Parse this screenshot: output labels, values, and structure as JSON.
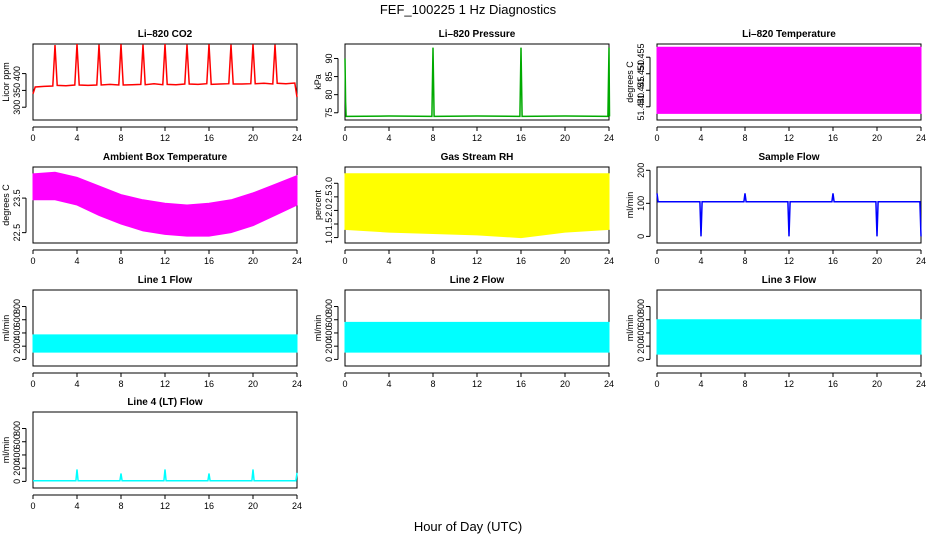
{
  "figure": {
    "title": "FEF_100225  1 Hz Diagnostics",
    "xlabel": "Hour of Day (UTC)"
  },
  "chart_data": [
    {
      "type": "line",
      "title": "Li–820 CO2",
      "ylabel": "Licor ppm",
      "color": "#ff0000",
      "xlim": [
        0,
        24
      ],
      "ylim": [
        262,
        488
      ],
      "xticks": [
        "0",
        "4",
        "8",
        "12",
        "16",
        "20",
        "24"
      ],
      "yticks": [
        "300",
        "350",
        "400"
      ],
      "ytick_values": [
        300,
        350,
        400
      ],
      "series": [
        {
          "x": [
            0,
            0.2,
            1,
            1.8,
            2,
            2.2,
            3,
            3.8,
            4,
            4.2,
            5,
            5.8,
            6,
            6.2,
            7,
            7.8,
            8,
            8.2,
            9,
            9.8,
            10,
            10.2,
            11,
            11.8,
            12,
            12.2,
            13,
            13.8,
            14,
            14.2,
            15,
            15.8,
            16,
            16.2,
            17,
            17.8,
            18,
            18.2,
            19,
            19.8,
            20,
            20.2,
            21,
            21.8,
            22,
            22.2,
            23,
            23.8,
            24
          ],
          "y": [
            340,
            360,
            362,
            363,
            485,
            365,
            364,
            366,
            488,
            366,
            365,
            366,
            486,
            366,
            368,
            366,
            487,
            366,
            367,
            368,
            486,
            367,
            370,
            367,
            488,
            368,
            367,
            369,
            486,
            369,
            368,
            370,
            487,
            368,
            369,
            370,
            486,
            369,
            369,
            370,
            487,
            370,
            371,
            369,
            486,
            371,
            370,
            372,
            330
          ]
        }
      ]
    },
    {
      "type": "line",
      "title": "Li–820 Pressure",
      "ylabel": "kPa",
      "color": "#00aa00",
      "xlim": [
        0,
        24
      ],
      "ylim": [
        73,
        94
      ],
      "xticks": [
        "0",
        "4",
        "8",
        "12",
        "16",
        "20",
        "24"
      ],
      "yticks": [
        "75",
        "80",
        "85",
        "90"
      ],
      "ytick_values": [
        75,
        80,
        85,
        90
      ],
      "series": [
        {
          "x": [
            0,
            0.05,
            0.1,
            0.3,
            4,
            7.9,
            8,
            8.1,
            12,
            15.9,
            16,
            16.1,
            20,
            23.9,
            24,
            24.05
          ],
          "y": [
            90,
            78,
            74,
            74,
            74.1,
            74,
            93,
            74,
            74.1,
            74,
            93,
            74,
            74.1,
            74,
            93,
            74
          ]
        }
      ]
    },
    {
      "type": "area",
      "title": "Li–820 Temperature",
      "ylabel": "degrees C",
      "color": "#ff00ff",
      "xlim": [
        0,
        24
      ],
      "ylim": [
        51.436,
        51.459
      ],
      "xticks": [
        "0",
        "4",
        "8",
        "12",
        "16",
        "20",
        "24"
      ],
      "yticks": [
        "51.440",
        "51.445",
        "51.450",
        "51.455"
      ],
      "ytick_values": [
        51.44,
        51.445,
        51.45,
        51.455
      ],
      "series": [
        {
          "x": [
            0,
            24
          ],
          "ymin": [
            51.438,
            51.438
          ],
          "ymax": [
            51.458,
            51.458
          ]
        }
      ]
    },
    {
      "type": "area",
      "title": "Ambient Box Temperature",
      "ylabel": "degrees C",
      "color": "#ff00ff",
      "xlim": [
        0,
        24
      ],
      "ylim": [
        22.2,
        24.4
      ],
      "xticks": [
        "0",
        "4",
        "8",
        "12",
        "16",
        "20",
        "24"
      ],
      "yticks": [
        "22.5",
        "23.5"
      ],
      "ytick_values": [
        22.5,
        23.5
      ],
      "series": [
        {
          "x": [
            0,
            2,
            4,
            6,
            8,
            10,
            12,
            14,
            16,
            18,
            20,
            22,
            24
          ],
          "ymin": [
            23.45,
            23.45,
            23.3,
            23.0,
            22.75,
            22.55,
            22.45,
            22.4,
            22.4,
            22.5,
            22.7,
            23.0,
            23.3
          ],
          "ymax": [
            24.2,
            24.25,
            24.1,
            23.85,
            23.6,
            23.45,
            23.35,
            23.3,
            23.35,
            23.45,
            23.65,
            23.9,
            24.15
          ]
        }
      ]
    },
    {
      "type": "area",
      "title": "Gas Stream RH",
      "ylabel": "percent",
      "color": "#ffff00",
      "xlim": [
        0,
        24
      ],
      "ylim": [
        0.8,
        3.6
      ],
      "xticks": [
        "0",
        "4",
        "8",
        "12",
        "16",
        "20",
        "24"
      ],
      "yticks": [
        "1.0",
        "1.5",
        "2.0",
        "2.5",
        "3.0"
      ],
      "ytick_values": [
        1.0,
        1.5,
        2.0,
        2.5,
        3.0
      ],
      "series": [
        {
          "x": [
            0,
            4,
            8,
            12,
            16,
            20,
            24
          ],
          "ymin": [
            1.3,
            1.2,
            1.15,
            1.1,
            1.0,
            1.2,
            1.3
          ],
          "ymax": [
            3.35,
            3.35,
            3.35,
            3.35,
            3.35,
            3.35,
            3.35
          ]
        }
      ]
    },
    {
      "type": "line",
      "title": "Sample Flow",
      "ylabel": "ml/min",
      "color": "#0000ff",
      "xlim": [
        0,
        24
      ],
      "ylim": [
        -20,
        210
      ],
      "xticks": [
        "0",
        "4",
        "8",
        "12",
        "16",
        "20",
        "24"
      ],
      "yticks": [
        "0",
        "100",
        "200"
      ],
      "ytick_values": [
        0,
        100,
        200
      ],
      "series": [
        {
          "x": [
            0,
            0.1,
            0.2,
            3.9,
            4,
            4.1,
            7.9,
            8,
            8.1,
            11.9,
            12,
            12.1,
            15.9,
            16,
            16.1,
            19.9,
            20,
            20.1,
            23.9,
            24
          ],
          "y": [
            130,
            105,
            105,
            105,
            0,
            105,
            105,
            130,
            105,
            105,
            0,
            105,
            105,
            130,
            105,
            105,
            0,
            105,
            105,
            0
          ]
        }
      ]
    },
    {
      "type": "area",
      "title": "Line 1 Flow",
      "ylabel": "ml/min",
      "color": "#00ffff",
      "xlim": [
        0,
        24
      ],
      "ylim": [
        -100,
        1050
      ],
      "xticks": [
        "0",
        "4",
        "8",
        "12",
        "16",
        "20",
        "24"
      ],
      "yticks": [
        "0",
        "200",
        "400",
        "600",
        "800"
      ],
      "ytick_values": [
        0,
        200,
        400,
        600,
        800
      ],
      "series": [
        {
          "x": [
            0,
            24
          ],
          "ymin": [
            110,
            110
          ],
          "ymax": [
            370,
            370
          ]
        }
      ]
    },
    {
      "type": "area",
      "title": "Line 2 Flow",
      "ylabel": "ml/min",
      "color": "#00ffff",
      "xlim": [
        0,
        24
      ],
      "ylim": [
        -100,
        1050
      ],
      "xticks": [
        "0",
        "4",
        "8",
        "12",
        "16",
        "20",
        "24"
      ],
      "yticks": [
        "0",
        "200",
        "400",
        "600",
        "800"
      ],
      "ytick_values": [
        0,
        200,
        400,
        600,
        800
      ],
      "series": [
        {
          "x": [
            0,
            24
          ],
          "ymin": [
            110,
            110
          ],
          "ymax": [
            560,
            560
          ]
        }
      ]
    },
    {
      "type": "area",
      "title": "Line 3 Flow",
      "ylabel": "ml/min",
      "color": "#00ffff",
      "xlim": [
        0,
        24
      ],
      "ylim": [
        -100,
        1050
      ],
      "xticks": [
        "0",
        "4",
        "8",
        "12",
        "16",
        "20",
        "24"
      ],
      "yticks": [
        "0",
        "200",
        "400",
        "600",
        "800"
      ],
      "ytick_values": [
        0,
        200,
        400,
        600,
        800
      ],
      "series": [
        {
          "x": [
            0,
            24
          ],
          "ymin": [
            80,
            80
          ],
          "ymax": [
            600,
            600
          ]
        }
      ]
    },
    {
      "type": "line",
      "title": "Line 4 (LT) Flow",
      "ylabel": "ml/min",
      "color": "#00ffff",
      "xlim": [
        0,
        24
      ],
      "ylim": [
        -100,
        1050
      ],
      "xticks": [
        "0",
        "4",
        "8",
        "12",
        "16",
        "20",
        "24"
      ],
      "yticks": [
        "0",
        "200",
        "400",
        "600",
        "800"
      ],
      "ytick_values": [
        0,
        200,
        400,
        600,
        800
      ],
      "series": [
        {
          "x": [
            0,
            3.9,
            4,
            4.1,
            7.9,
            8,
            8.1,
            11.9,
            12,
            12.1,
            15.9,
            16,
            16.1,
            19.9,
            20,
            20.1,
            23.9,
            24
          ],
          "y": [
            10,
            10,
            180,
            10,
            10,
            120,
            10,
            10,
            180,
            10,
            10,
            120,
            10,
            10,
            180,
            10,
            10,
            130
          ]
        }
      ]
    }
  ]
}
